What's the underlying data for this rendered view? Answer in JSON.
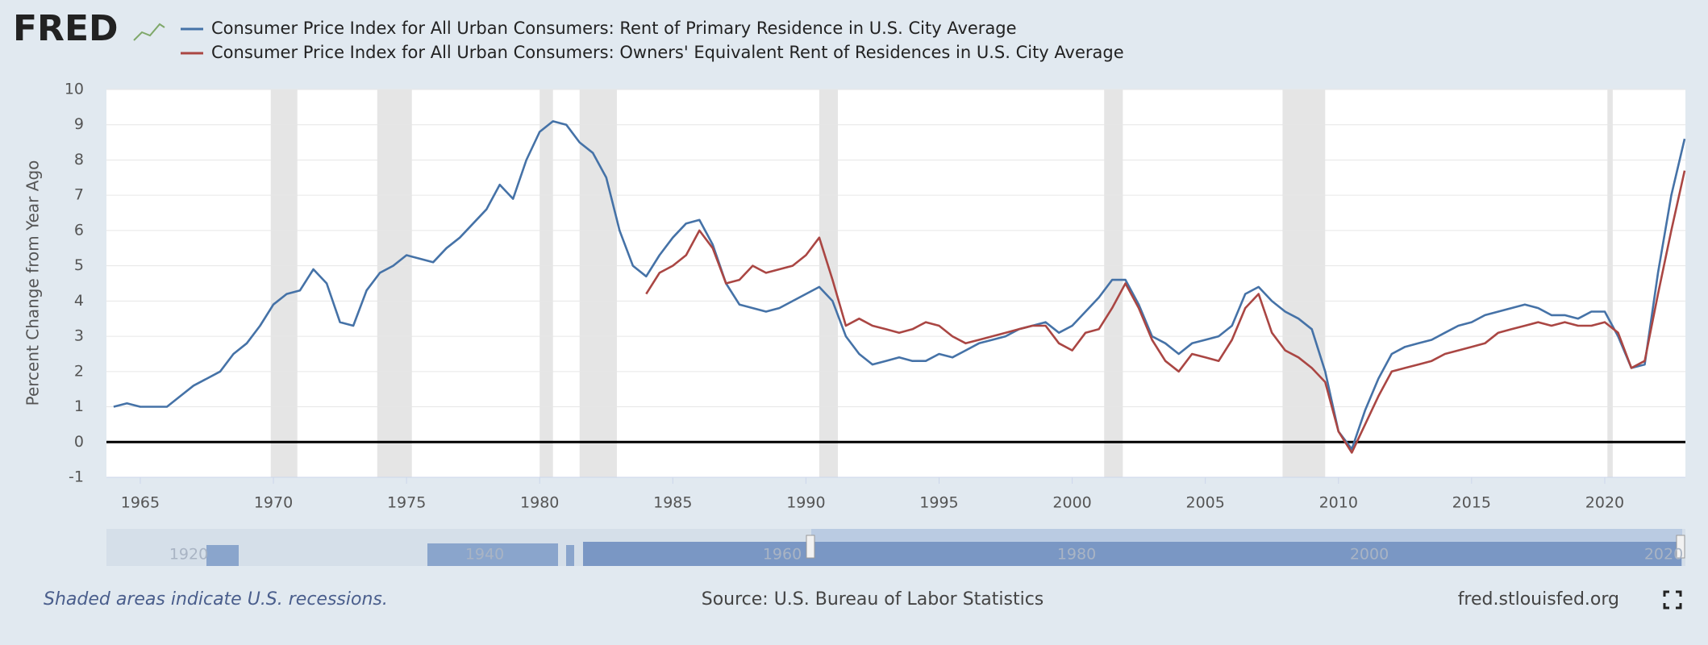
{
  "logo": "FRED",
  "chart_data": {
    "type": "line",
    "y_label": "Percent Change from Year Ago",
    "x": [
      1964,
      1964.5,
      1965,
      1965.5,
      1966,
      1966.5,
      1967,
      1967.5,
      1968,
      1968.5,
      1969,
      1969.5,
      1970,
      1970.5,
      1971,
      1971.5,
      1972,
      1972.5,
      1973,
      1973.5,
      1974,
      1974.5,
      1975,
      1975.5,
      1976,
      1976.5,
      1977,
      1977.5,
      1978,
      1978.5,
      1979,
      1979.5,
      1980,
      1980.5,
      1981,
      1981.5,
      1982,
      1982.5,
      1983,
      1983.5,
      1984,
      1984.5,
      1985,
      1985.5,
      1986,
      1986.5,
      1987,
      1987.5,
      1988,
      1988.5,
      1989,
      1989.5,
      1990,
      1990.5,
      1991,
      1991.5,
      1992,
      1992.5,
      1993,
      1993.5,
      1994,
      1994.5,
      1995,
      1995.5,
      1996,
      1996.5,
      1997,
      1997.5,
      1998,
      1998.5,
      1999,
      1999.5,
      2000,
      2000.5,
      2001,
      2001.5,
      2002,
      2002.5,
      2003,
      2003.5,
      2004,
      2004.5,
      2005,
      2005.5,
      2006,
      2006.5,
      2007,
      2007.5,
      2008,
      2008.5,
      2009,
      2009.5,
      2010,
      2010.5,
      2011,
      2011.5,
      2012,
      2012.5,
      2013,
      2013.5,
      2014,
      2014.5,
      2015,
      2015.5,
      2016,
      2016.5,
      2017,
      2017.5,
      2018,
      2018.5,
      2019,
      2019.5,
      2020,
      2020.5,
      2021,
      2021.5,
      2022,
      2022.5,
      2023
    ],
    "series": [
      {
        "name": "Consumer Price Index for All Urban Consumers: Rent of Primary Residence in U.S. City Average",
        "color": "#4572a7",
        "values": [
          1.0,
          1.1,
          1.0,
          1.0,
          1.0,
          1.3,
          1.6,
          1.8,
          2.0,
          2.5,
          2.8,
          3.3,
          3.9,
          4.2,
          4.3,
          4.9,
          4.5,
          3.4,
          3.3,
          4.3,
          4.8,
          5.0,
          5.3,
          5.2,
          5.1,
          5.5,
          5.8,
          6.2,
          6.6,
          7.3,
          6.9,
          8.0,
          8.8,
          9.1,
          9.0,
          8.5,
          8.2,
          7.5,
          6.0,
          5.0,
          4.7,
          5.3,
          5.8,
          6.2,
          6.3,
          5.6,
          4.5,
          3.9,
          3.8,
          3.7,
          3.8,
          4.0,
          4.2,
          4.4,
          4.0,
          3.0,
          2.5,
          2.2,
          2.3,
          2.4,
          2.3,
          2.3,
          2.5,
          2.4,
          2.6,
          2.8,
          2.9,
          3.0,
          3.2,
          3.3,
          3.4,
          3.1,
          3.3,
          3.7,
          4.1,
          4.6,
          4.6,
          3.9,
          3.0,
          2.8,
          2.5,
          2.8,
          2.9,
          3.0,
          3.3,
          4.2,
          4.4,
          4.0,
          3.7,
          3.5,
          3.2,
          2.0,
          0.3,
          -0.2,
          0.9,
          1.8,
          2.5,
          2.7,
          2.8,
          2.9,
          3.1,
          3.3,
          3.4,
          3.6,
          3.7,
          3.8,
          3.9,
          3.8,
          3.6,
          3.6,
          3.5,
          3.7,
          3.7,
          3.0,
          2.1,
          2.2,
          4.8,
          7.0,
          8.6
        ]
      },
      {
        "name": "Consumer Price Index for All Urban Consumers: Owners' Equivalent Rent of Residences in U.S. City Average",
        "color": "#aa4643",
        "values": [
          null,
          null,
          null,
          null,
          null,
          null,
          null,
          null,
          null,
          null,
          null,
          null,
          null,
          null,
          null,
          null,
          null,
          null,
          null,
          null,
          null,
          null,
          null,
          null,
          null,
          null,
          null,
          null,
          null,
          null,
          null,
          null,
          null,
          null,
          null,
          null,
          null,
          null,
          null,
          null,
          4.2,
          4.8,
          5.0,
          5.3,
          6.0,
          5.5,
          4.5,
          4.6,
          5.0,
          4.8,
          4.9,
          5.0,
          5.3,
          5.8,
          4.6,
          3.3,
          3.5,
          3.3,
          3.2,
          3.1,
          3.2,
          3.4,
          3.3,
          3.0,
          2.8,
          2.9,
          3.0,
          3.1,
          3.2,
          3.3,
          3.3,
          2.8,
          2.6,
          3.1,
          3.2,
          3.8,
          4.5,
          3.8,
          2.9,
          2.3,
          2.0,
          2.5,
          2.4,
          2.3,
          2.9,
          3.8,
          4.2,
          3.1,
          2.6,
          2.4,
          2.1,
          1.7,
          0.3,
          -0.3,
          0.5,
          1.3,
          2.0,
          2.1,
          2.2,
          2.3,
          2.5,
          2.6,
          2.7,
          2.8,
          3.1,
          3.2,
          3.3,
          3.4,
          3.3,
          3.4,
          3.3,
          3.3,
          3.4,
          3.1,
          2.1,
          2.3,
          4.2,
          6.0,
          7.7
        ]
      }
    ],
    "xlim": [
      1963.73,
      2023.03
    ],
    "xticks": [
      1965,
      1970,
      1975,
      1980,
      1985,
      1990,
      1995,
      2000,
      2005,
      2010,
      2015,
      2020
    ],
    "ylim": [
      -1,
      10
    ],
    "yticks": [
      -1,
      0,
      1,
      2,
      3,
      4,
      5,
      6,
      7,
      8,
      9,
      10
    ],
    "grid": true,
    "zero_line": true,
    "recessions": [
      [
        1969.9,
        1970.9
      ],
      [
        1973.9,
        1975.2
      ],
      [
        1980.0,
        1980.5
      ],
      [
        1981.5,
        1982.9
      ],
      [
        1990.5,
        1991.2
      ],
      [
        2001.2,
        2001.9
      ],
      [
        2007.9,
        2009.5
      ],
      [
        2020.1,
        2020.3
      ]
    ],
    "navigator_labels": [
      "1920",
      "1940",
      "1960",
      "1980",
      "2000",
      "2020"
    ]
  },
  "footer": {
    "note": "Shaded areas indicate U.S. recessions.",
    "source": "Source: U.S. Bureau of Labor Statistics",
    "site": "fred.stlouisfed.org"
  }
}
